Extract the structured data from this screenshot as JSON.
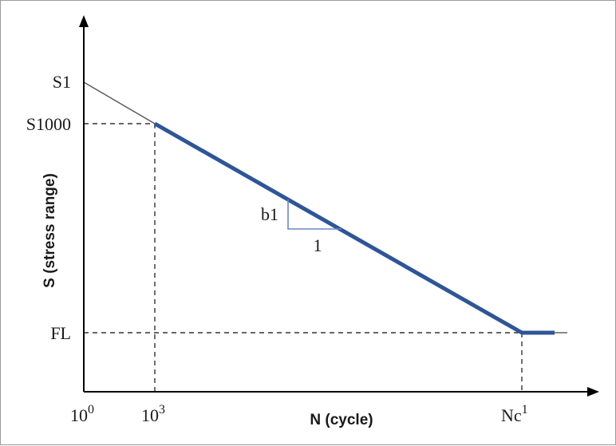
{
  "chart_data": {
    "type": "line",
    "xlabel": "N (cycle)",
    "ylabel": "S (stress range)",
    "x_scale": "log",
    "grid": false,
    "x_ticks": [
      {
        "label_base": "10",
        "label_sup": "0"
      },
      {
        "label_base": "10",
        "label_sup": "3"
      },
      {
        "label_base": "Nc",
        "label_sup": "1"
      }
    ],
    "y_ticks": [
      {
        "label": "S1"
      },
      {
        "label": "S1000"
      },
      {
        "label": "FL"
      }
    ],
    "slope_annotation": {
      "rise_label": "b1",
      "run_label": "1"
    },
    "colors": {
      "curve": "#2f5597",
      "thin_line": "#555555",
      "axis": "#000000",
      "dashed": "#333333",
      "slope_triangle": "#6c87c3"
    }
  }
}
